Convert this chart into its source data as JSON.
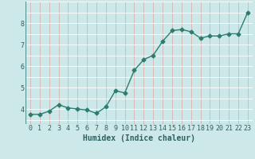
{
  "x": [
    0,
    1,
    2,
    3,
    4,
    5,
    6,
    7,
    8,
    9,
    10,
    11,
    12,
    13,
    14,
    15,
    16,
    17,
    18,
    19,
    20,
    21,
    22,
    23
  ],
  "y": [
    3.75,
    3.75,
    3.9,
    4.2,
    4.05,
    4.0,
    3.95,
    3.8,
    4.1,
    4.85,
    4.75,
    5.8,
    6.3,
    6.5,
    7.15,
    7.65,
    7.7,
    7.6,
    7.3,
    7.4,
    7.4,
    7.5,
    7.5,
    8.5
  ],
  "line_color": "#2d7d6e",
  "marker": "D",
  "marker_size": 2.5,
  "line_width": 1.0,
  "bg_color": "#cce8e8",
  "grid_white_color": "#ffffff",
  "grid_pink_color": "#d9b0b0",
  "xlabel": "Humidex (Indice chaleur)",
  "xlabel_fontsize": 7,
  "tick_fontsize": 6,
  "xlim": [
    -0.5,
    23.5
  ],
  "ylim": [
    3.3,
    9.0
  ],
  "yticks": [
    4,
    5,
    6,
    7,
    8
  ],
  "xtick_labels": [
    "0",
    "1",
    "2",
    "3",
    "4",
    "5",
    "6",
    "7",
    "8",
    "9",
    "10",
    "11",
    "12",
    "13",
    "14",
    "15",
    "16",
    "17",
    "18",
    "19",
    "20",
    "21",
    "22",
    "23"
  ]
}
